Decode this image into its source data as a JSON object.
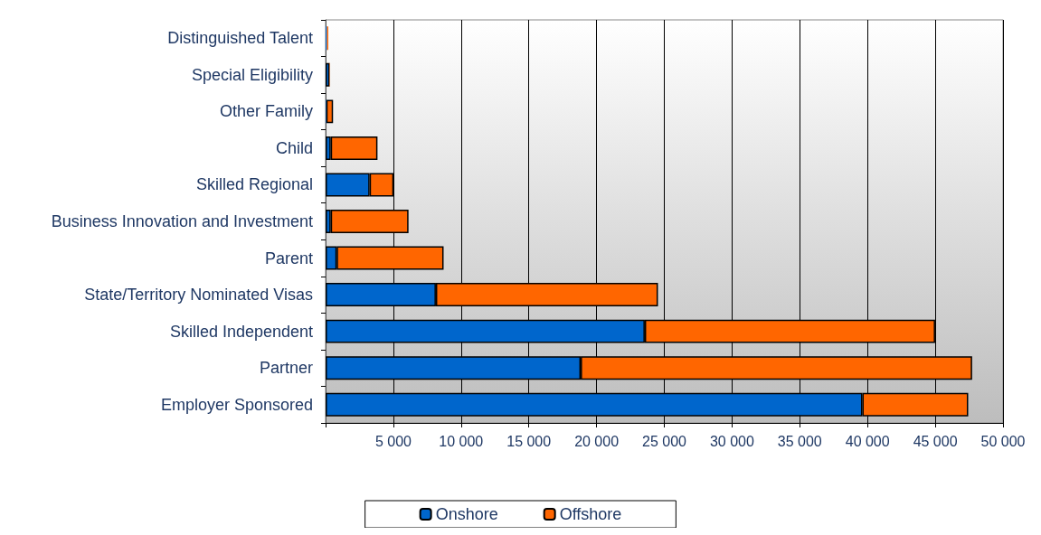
{
  "chart_data": {
    "type": "bar",
    "orientation": "horizontal",
    "stacked": true,
    "categories": [
      "Distinguished Talent",
      "Special Eligibility",
      "Other Family",
      "Child",
      "Skilled Regional",
      "Business Innovation and Investment",
      "Parent",
      "State/Territory Nominated Visas",
      "Skilled Independent",
      "Partner",
      "Employer Sponsored"
    ],
    "series": [
      {
        "name": "Onshore",
        "color": "#0066cc",
        "values": [
          100,
          300,
          50,
          380,
          3250,
          380,
          820,
          8140,
          23560,
          18830,
          39620
        ]
      },
      {
        "name": "Offshore",
        "color": "#ff6600",
        "values": [
          100,
          30,
          500,
          3450,
          1770,
          5740,
          7890,
          16390,
          21430,
          28890,
          7810
        ]
      }
    ],
    "xlim": [
      0,
      50000
    ],
    "xticks": [
      {
        "value": 0,
        "label": null
      },
      {
        "value": 5000,
        "label": "5 000"
      },
      {
        "value": 10000,
        "label": "10 000"
      },
      {
        "value": 15000,
        "label": "15 000"
      },
      {
        "value": 20000,
        "label": "20 000"
      },
      {
        "value": 25000,
        "label": "25 000"
      },
      {
        "value": 30000,
        "label": "30 000"
      },
      {
        "value": 35000,
        "label": "35 000"
      },
      {
        "value": 40000,
        "label": "40 000"
      },
      {
        "value": 45000,
        "label": "45 000"
      },
      {
        "value": 50000,
        "label": "50 000"
      }
    ],
    "grid": "x",
    "legend": "bottom"
  }
}
